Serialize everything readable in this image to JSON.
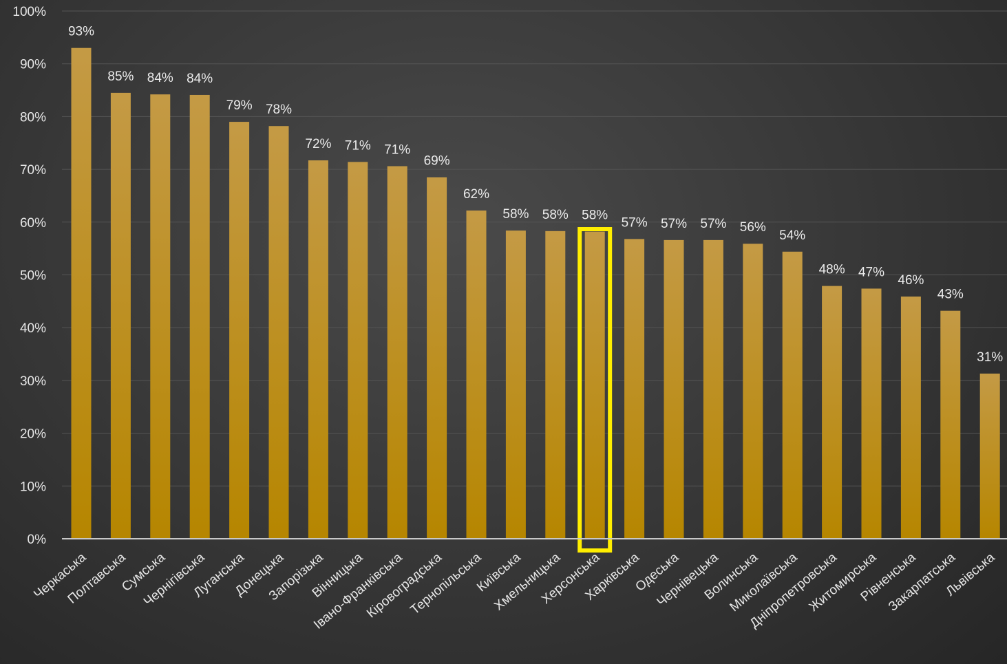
{
  "chart_data": {
    "type": "bar",
    "categories": [
      "Черкаська",
      "Полтавська",
      "Сумська",
      "Чернігівська",
      "Луганська",
      "Донецька",
      "Запорізька",
      "Вінницька",
      "Івано-Франківська",
      "Кіровоградська",
      "Тернопільська",
      "Київська",
      "Хмельницька",
      "Херсонська",
      "Харківська",
      "Одеська",
      "Чернівецька",
      "Волинська",
      "Миколаївська",
      "Дніпропетровська",
      "Житомирська",
      "Рівненська",
      "Закарпатська",
      "Львівська"
    ],
    "values": [
      93,
      84.5,
      84.2,
      84.1,
      79,
      78.2,
      71.7,
      71.4,
      70.6,
      68.5,
      62.2,
      58.4,
      58.3,
      58.2,
      56.8,
      56.6,
      56.6,
      55.9,
      54.4,
      47.9,
      47.4,
      45.9,
      43.2,
      31.3
    ],
    "data_labels": [
      "93%",
      "85%",
      "84%",
      "84%",
      "79%",
      "78%",
      "72%",
      "71%",
      "71%",
      "69%",
      "62%",
      "58%",
      "58%",
      "58%",
      "57%",
      "57%",
      "57%",
      "56%",
      "54%",
      "48%",
      "47%",
      "46%",
      "43%",
      "31%"
    ],
    "y_ticks": [
      "0%",
      "10%",
      "20%",
      "30%",
      "40%",
      "50%",
      "60%",
      "70%",
      "80%",
      "90%",
      "100%"
    ],
    "ylim": [
      0,
      100
    ],
    "title": "",
    "xlabel": "",
    "ylabel": "",
    "grid": true,
    "highlighted_category": "Херсонська",
    "colors": {
      "bar_top": "#c49a45",
      "bar_bottom": "#b68600",
      "highlight": "#ffee00",
      "grid": "#555555",
      "axis": "#c8c8c8"
    }
  }
}
